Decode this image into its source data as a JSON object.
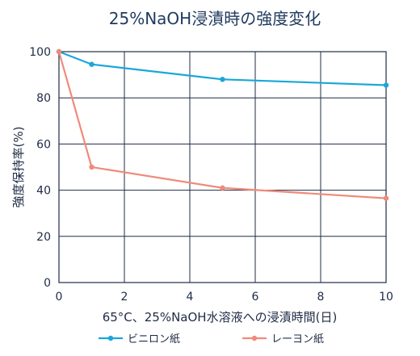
{
  "chart_data": {
    "type": "line",
    "title": "25%NaOH浸漬時の強度変化",
    "xlabel": "65°C、25%NaOH水溶液への浸漬時間(日)",
    "ylabel": "強度保持率(%)",
    "xlim": [
      0,
      10
    ],
    "ylim": [
      0,
      100
    ],
    "xticks": [
      "0",
      "2",
      "4",
      "6",
      "8",
      "10"
    ],
    "yticks": [
      "0",
      "20",
      "40",
      "60",
      "80",
      "100"
    ],
    "grid": true,
    "legend_position": "bottom",
    "series": [
      {
        "name": "ビニロン紙",
        "color": "#1aa7d9",
        "x": [
          0,
          1,
          5,
          10
        ],
        "y": [
          100,
          94.5,
          88,
          85.5
        ]
      },
      {
        "name": "レーヨン紙",
        "color": "#f08a7a",
        "x": [
          0,
          1,
          5,
          10
        ],
        "y": [
          100,
          50,
          41,
          36.5
        ]
      }
    ]
  }
}
